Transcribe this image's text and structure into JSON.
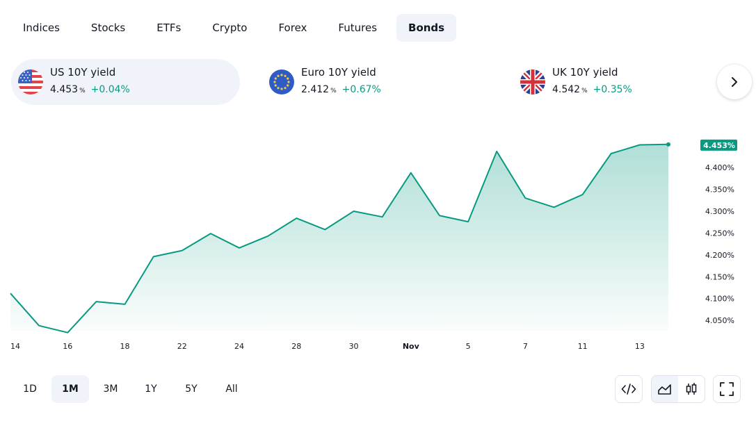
{
  "tabs": [
    {
      "label": "Indices",
      "active": false
    },
    {
      "label": "Stocks",
      "active": false
    },
    {
      "label": "ETFs",
      "active": false
    },
    {
      "label": "Crypto",
      "active": false
    },
    {
      "label": "Forex",
      "active": false
    },
    {
      "label": "Futures",
      "active": false
    },
    {
      "label": "Bonds",
      "active": true
    }
  ],
  "quotes": [
    {
      "name": "US 10Y yield",
      "price": "4.453",
      "unit": "%",
      "change": "+0.04%",
      "flag": "us-flag-icon",
      "active": true
    },
    {
      "name": "Euro 10Y yield",
      "price": "2.412",
      "unit": "%",
      "change": "+0.67%",
      "flag": "eu-flag-icon",
      "active": false
    },
    {
      "name": "UK 10Y yield",
      "price": "4.542",
      "unit": "%",
      "change": "+0.35%",
      "flag": "uk-flag-icon",
      "active": false
    }
  ],
  "next_icon": "chevron-right-icon",
  "colors": {
    "accent": "#089981",
    "line": "#089981",
    "badge_bg": "#089981",
    "tab_active_bg": "#f0f3fa"
  },
  "chart_data": {
    "type": "area",
    "series": [
      {
        "values": [
          4.112,
          4.038,
          4.022,
          4.093,
          4.087,
          4.196,
          4.21,
          4.249,
          4.216,
          4.243,
          4.284,
          4.258,
          4.3,
          4.287,
          4.388,
          4.29,
          4.276,
          4.437,
          4.33,
          4.309,
          4.338,
          4.432,
          4.452,
          4.453
        ]
      }
    ],
    "x_index": [
      0,
      1,
      2,
      3,
      4,
      5,
      6,
      7,
      8,
      9,
      10,
      11,
      12,
      13,
      14,
      15,
      16,
      17,
      18,
      19,
      20,
      21,
      22,
      23
    ],
    "xticks": [
      {
        "label": "14",
        "i": 0,
        "bold": false
      },
      {
        "label": "16",
        "i": 2,
        "bold": false
      },
      {
        "label": "18",
        "i": 4,
        "bold": false
      },
      {
        "label": "22",
        "i": 6,
        "bold": false
      },
      {
        "label": "24",
        "i": 8,
        "bold": false
      },
      {
        "label": "28",
        "i": 10,
        "bold": false
      },
      {
        "label": "30",
        "i": 12,
        "bold": false
      },
      {
        "label": "Nov",
        "i": 14,
        "bold": true
      },
      {
        "label": "5",
        "i": 16,
        "bold": false
      },
      {
        "label": "7",
        "i": 18,
        "bold": false
      },
      {
        "label": "11",
        "i": 20,
        "bold": false
      },
      {
        "label": "13",
        "i": 22,
        "bold": false
      }
    ],
    "yticks": [
      "4.400%",
      "4.350%",
      "4.300%",
      "4.250%",
      "4.200%",
      "4.150%",
      "4.100%",
      "4.050%"
    ],
    "ytick_values": [
      4.4,
      4.35,
      4.3,
      4.25,
      4.2,
      4.15,
      4.1,
      4.05
    ],
    "ylim": [
      4.02,
      4.475
    ],
    "last_value_label": "4.453%",
    "grid": false
  },
  "ranges": [
    {
      "label": "1D",
      "active": false
    },
    {
      "label": "1M",
      "active": true
    },
    {
      "label": "3M",
      "active": false
    },
    {
      "label": "1Y",
      "active": false
    },
    {
      "label": "5Y",
      "active": false
    },
    {
      "label": "All",
      "active": false
    }
  ],
  "tools": {
    "embed": "code-icon",
    "area": "area-chart-icon",
    "candles": "candlestick-icon",
    "fullscreen": "fullscreen-icon"
  }
}
